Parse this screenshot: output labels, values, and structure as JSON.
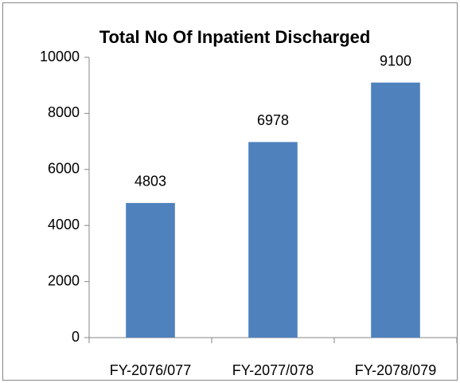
{
  "chart_data": {
    "type": "bar",
    "title": "Total No Of Inpatient Discharged",
    "categories": [
      "FY-2076/077",
      "FY-2077/078",
      "FY-2078/079"
    ],
    "values": [
      4803,
      6978,
      9100
    ],
    "color": "#4f81bd",
    "ylim": [
      0,
      10000
    ],
    "yticks": [
      0,
      2000,
      4000,
      6000,
      8000,
      10000
    ],
    "grid": false
  }
}
